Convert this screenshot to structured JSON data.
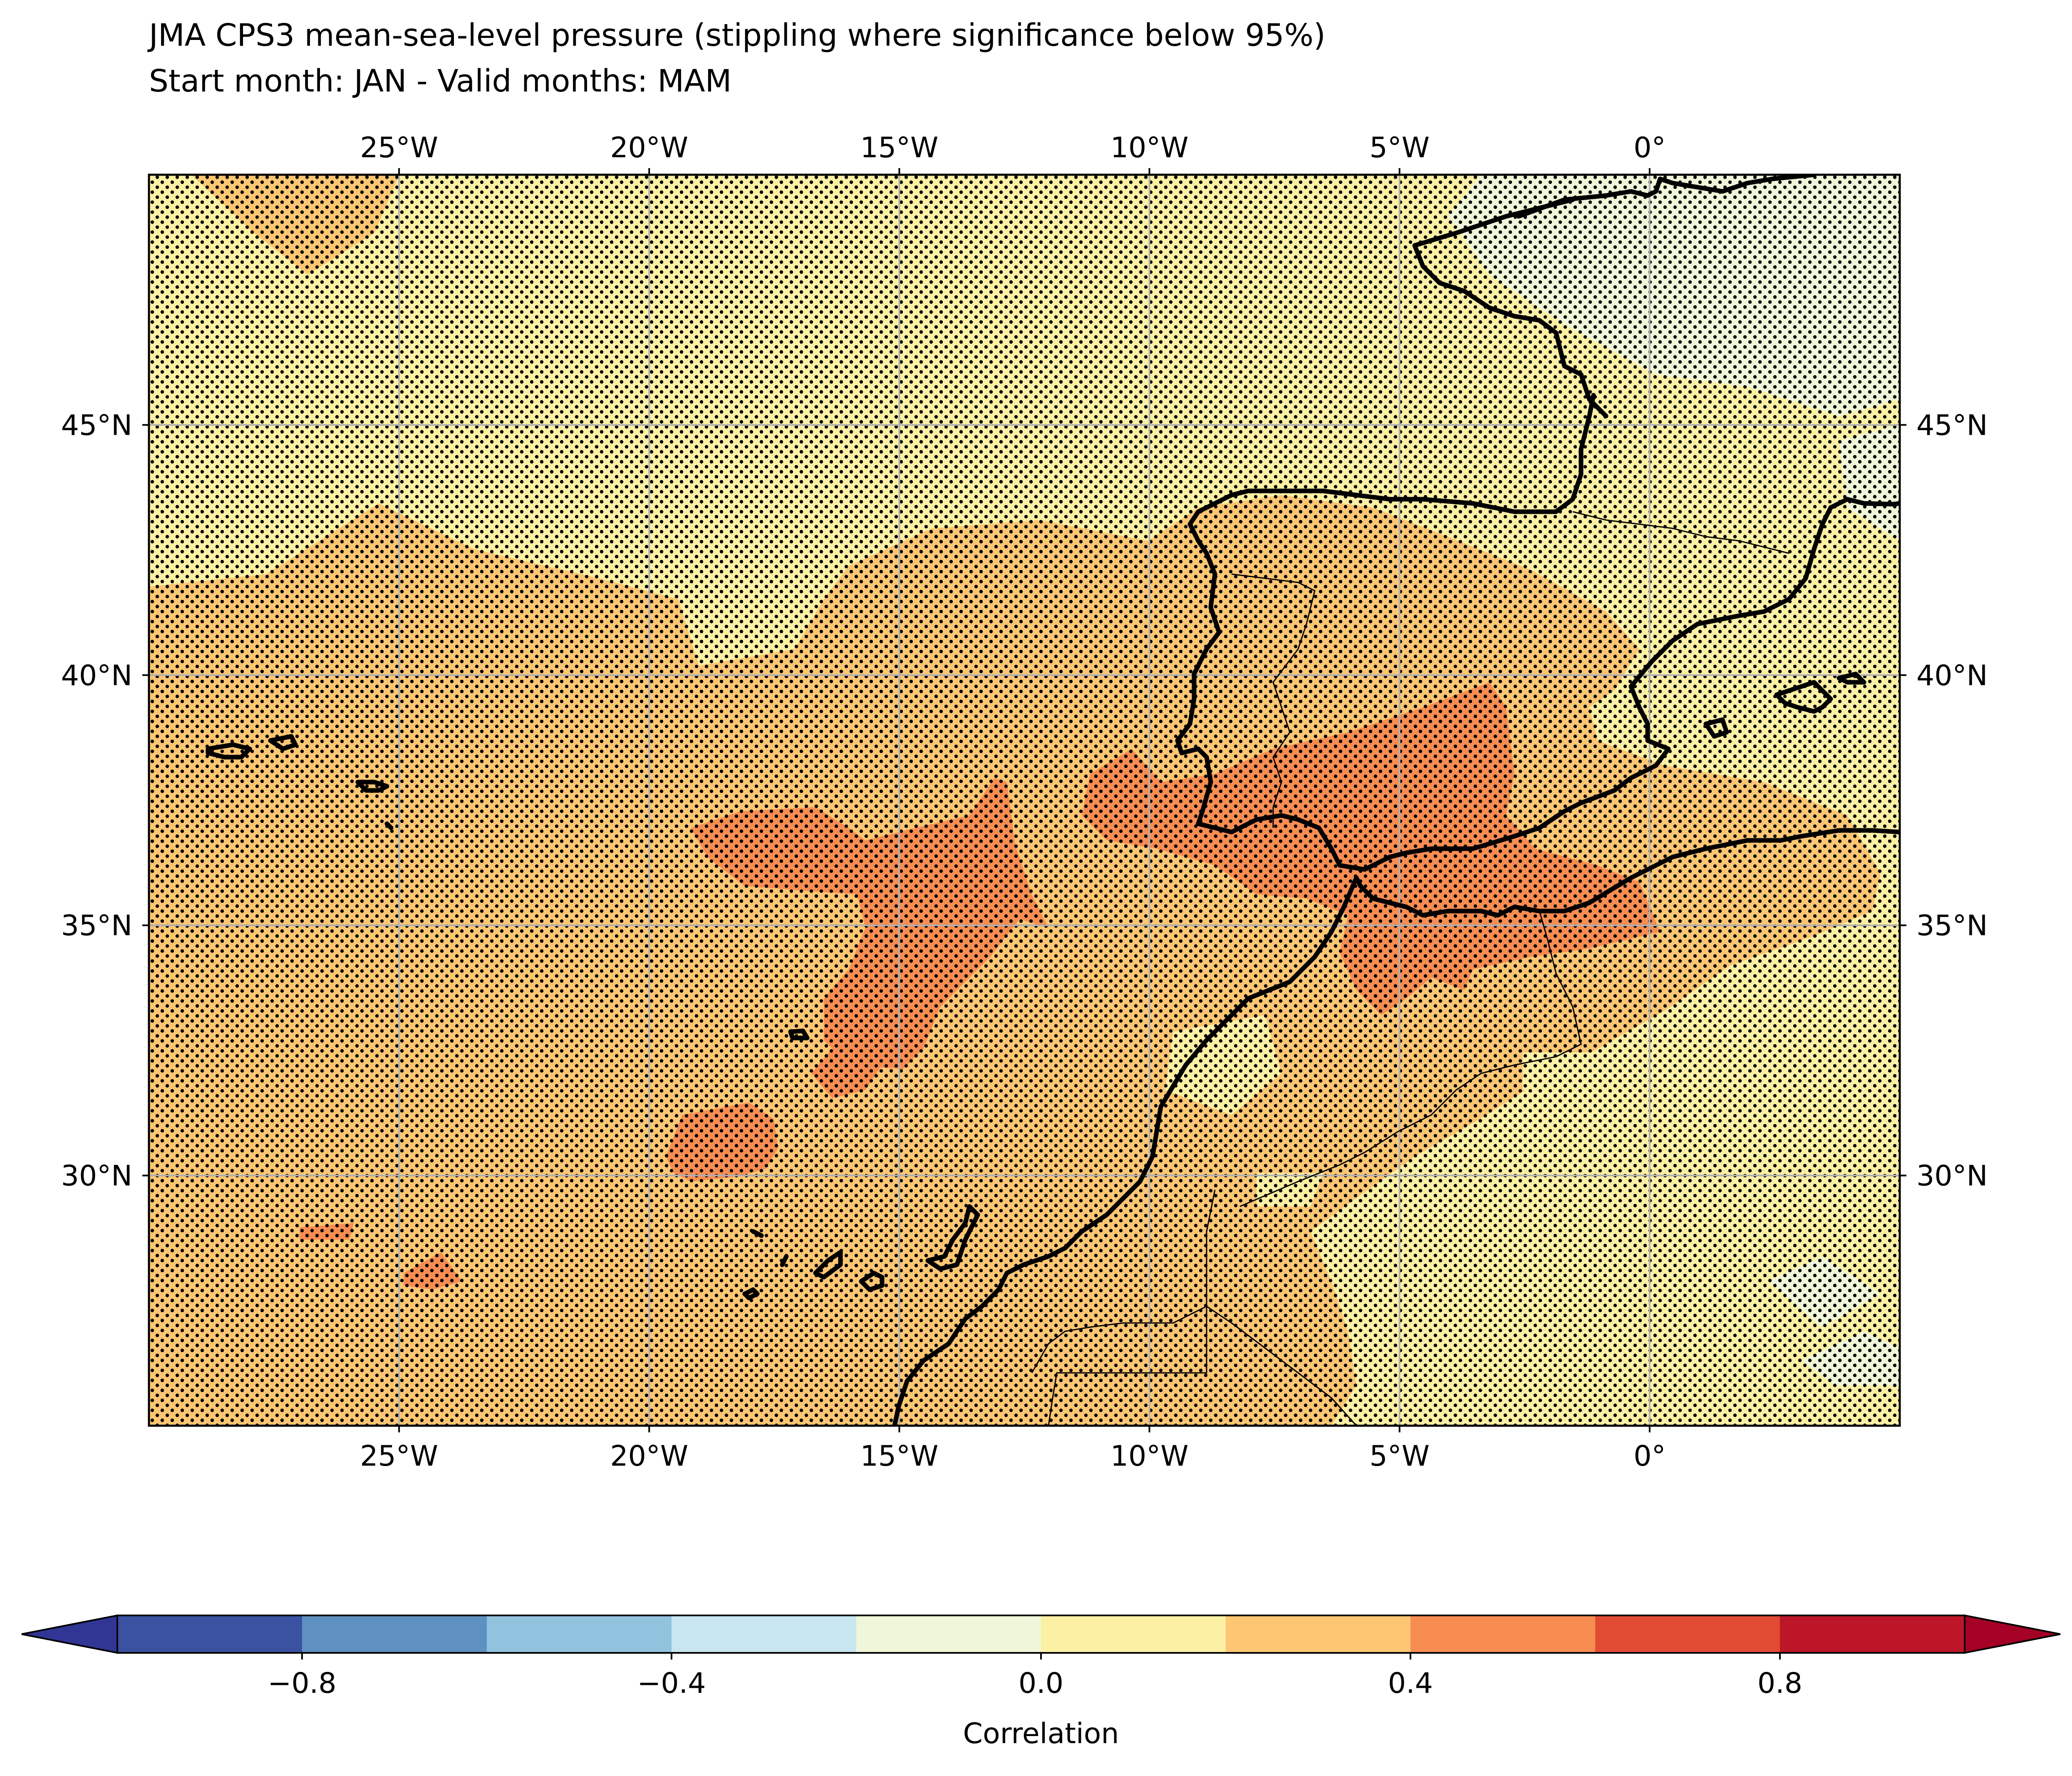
{
  "title": "JMA CPS3 mean-sea-level pressure (stippling where significance below 95%)",
  "subtitle": "Start month: JAN - Valid months: MAM",
  "map": {
    "projection": "plate-carree",
    "extent": {
      "lon_min": -30,
      "lon_max": 5,
      "lat_min": 25,
      "lat_max": 50
    },
    "gridlines": true,
    "lon_ticks": [
      {
        "value": -25,
        "label": "25°W"
      },
      {
        "value": -20,
        "label": "20°W"
      },
      {
        "value": -15,
        "label": "15°W"
      },
      {
        "value": -10,
        "label": "10°W"
      },
      {
        "value": -5,
        "label": "5°W"
      },
      {
        "value": 0,
        "label": "0°"
      }
    ],
    "lat_ticks": [
      {
        "value": 45,
        "label": "45°N"
      },
      {
        "value": 40,
        "label": "40°N"
      },
      {
        "value": 35,
        "label": "35°N"
      },
      {
        "value": 30,
        "label": "30°N"
      }
    ],
    "background_class": "0.0 to 0.2",
    "stippling": "significance below 95%"
  },
  "colorbar": {
    "label": "Correlation",
    "extend": "both",
    "boundaries": [
      -1.0,
      -0.8,
      -0.6,
      -0.4,
      -0.2,
      0.0,
      0.2,
      0.4,
      0.6,
      0.8,
      1.0
    ],
    "colors": [
      "#3a52a1",
      "#5e90c2",
      "#91c2de",
      "#c8e6f0",
      "#eff6d9",
      "#fcf0a4",
      "#fcc673",
      "#f88d52",
      "#e24b33",
      "#bc1628"
    ],
    "under_color": "#313695",
    "over_color": "#a50026",
    "tick_values": [
      -0.8,
      -0.4,
      0.0,
      0.4,
      0.8
    ],
    "tick_labels": [
      "−0.8",
      "−0.4",
      "0.0",
      "0.4",
      "0.8"
    ]
  }
}
